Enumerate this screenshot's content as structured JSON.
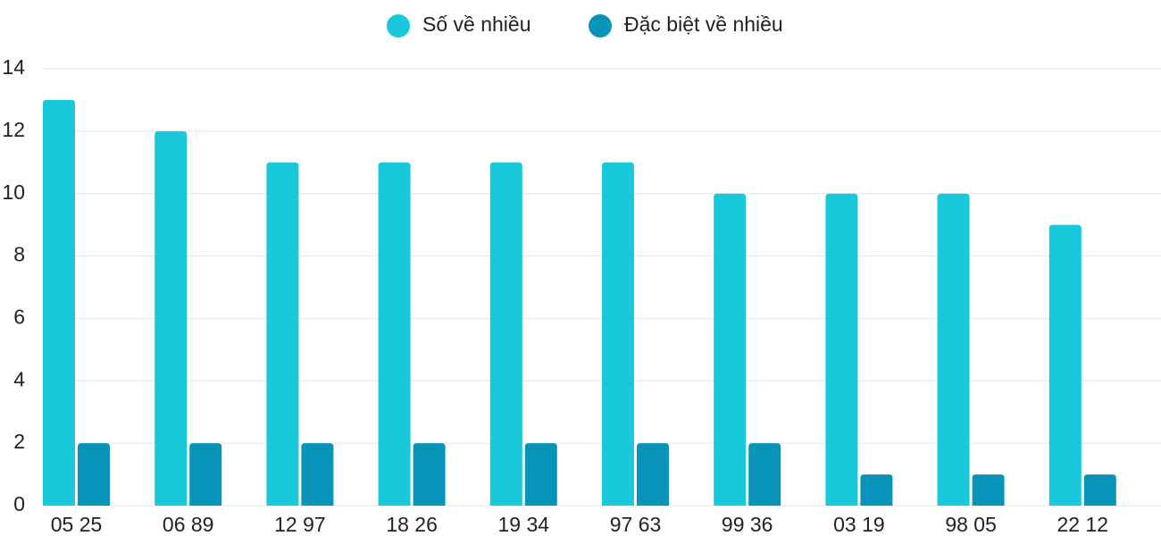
{
  "chart_data": {
    "type": "bar",
    "categories": [
      "05 25",
      "06 89",
      "12 97",
      "18 26",
      "19 34",
      "97 63",
      "99 36",
      "03 19",
      "98 05",
      "22 12"
    ],
    "series": [
      {
        "name": "Số về nhiều",
        "color": "#1ac8db",
        "values": [
          13,
          12,
          11,
          11,
          11,
          11,
          10,
          10,
          10,
          9
        ]
      },
      {
        "name": "Đặc biệt về nhiều",
        "color": "#0894b8",
        "values": [
          2,
          2,
          2,
          2,
          2,
          2,
          2,
          1,
          1,
          1
        ]
      }
    ],
    "ylim": [
      0,
      14
    ],
    "yticks": [
      0,
      2,
      4,
      6,
      8,
      10,
      12,
      14
    ],
    "grid": true,
    "legend": "top"
  }
}
